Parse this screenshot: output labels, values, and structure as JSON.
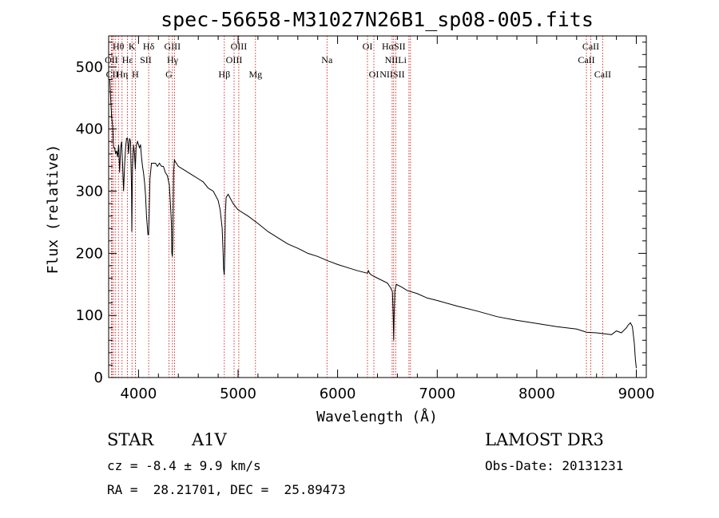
{
  "chart_data": {
    "type": "line",
    "title": "spec-56658-M31027N26B1_sp08-005.fits",
    "xlabel": "Wavelength (Å)",
    "ylabel": "Flux (relative)",
    "xlim": [
      3700,
      9100
    ],
    "ylim": [
      0,
      550
    ],
    "xticks": [
      4000,
      5000,
      6000,
      7000,
      8000,
      9000
    ],
    "yticks": [
      0,
      100,
      200,
      300,
      400,
      500
    ],
    "grid": false,
    "line_color": "#000000",
    "marker_color": "#cc0000",
    "series": [
      {
        "x": [
          3712,
          3720,
          3730,
          3740,
          3750,
          3760,
          3770,
          3780,
          3790,
          3800,
          3810,
          3820,
          3830,
          3835,
          3840,
          3850,
          3860,
          3870,
          3880,
          3889,
          3895,
          3900,
          3910,
          3920,
          3930,
          3933,
          3940,
          3950,
          3960,
          3968,
          3975,
          3980,
          3990,
          4000,
          4010,
          4020,
          4030,
          4040,
          4050,
          4060,
          4070,
          4080,
          4090,
          4095,
          4101,
          4107,
          4115,
          4130,
          4150,
          4170,
          4190,
          4210,
          4230,
          4250,
          4270,
          4290,
          4310,
          4320,
          4330,
          4335,
          4340,
          4345,
          4352,
          4360,
          4380,
          4400,
          4450,
          4500,
          4550,
          4600,
          4650,
          4700,
          4750,
          4800,
          4820,
          4840,
          4850,
          4855,
          4861,
          4867,
          4872,
          4880,
          4900,
          4950,
          5000,
          5100,
          5200,
          5300,
          5400,
          5500,
          5600,
          5700,
          5800,
          5900,
          6000,
          6100,
          6200,
          6300,
          6310,
          6320,
          6340,
          6400,
          6500,
          6530,
          6550,
          6558,
          6563,
          6568,
          6575,
          6590,
          6650,
          6700,
          6800,
          6900,
          7000,
          7200,
          7400,
          7600,
          7800,
          8000,
          8200,
          8400,
          8500,
          8600,
          8700,
          8750,
          8800,
          8850,
          8900,
          8920,
          8940,
          8960,
          8980,
          8990,
          9000
        ],
        "values": [
          480,
          450,
          420,
          405,
          370,
          370,
          360,
          365,
          355,
          375,
          330,
          370,
          380,
          360,
          345,
          300,
          340,
          370,
          385,
          385,
          375,
          360,
          385,
          380,
          300,
          235,
          340,
          375,
          360,
          335,
          370,
          375,
          380,
          375,
          370,
          375,
          355,
          340,
          330,
          315,
          295,
          260,
          240,
          230,
          230,
          260,
          320,
          345,
          345,
          345,
          340,
          345,
          340,
          340,
          330,
          325,
          310,
          280,
          250,
          200,
          195,
          220,
          330,
          350,
          345,
          340,
          335,
          330,
          325,
          320,
          315,
          305,
          300,
          285,
          270,
          240,
          200,
          175,
          165,
          200,
          265,
          290,
          295,
          280,
          270,
          260,
          248,
          235,
          225,
          215,
          208,
          200,
          195,
          188,
          182,
          177,
          172,
          168,
          172,
          168,
          165,
          160,
          152,
          145,
          138,
          100,
          60,
          100,
          140,
          150,
          145,
          140,
          135,
          128,
          124,
          115,
          107,
          98,
          92,
          87,
          82,
          78,
          73,
          72,
          70,
          69,
          75,
          72,
          80,
          85,
          88,
          82,
          55,
          30,
          15
        ]
      }
    ],
    "line_markers": [
      {
        "label": "Hθ",
        "x": 3798,
        "row": 1
      },
      {
        "label": "OII",
        "x": 3727,
        "row": 2
      },
      {
        "label": "CII",
        "x": 3737,
        "row": 3
      },
      {
        "label": "K",
        "x": 3934,
        "row": 1
      },
      {
        "label": "Hε",
        "x": 3889,
        "row": 2
      },
      {
        "label": "Hη",
        "x": 3835,
        "row": 3
      },
      {
        "label": "Hδ",
        "x": 4102,
        "row": 1
      },
      {
        "label": "SII",
        "x": 4072,
        "row": 2
      },
      {
        "label": "H",
        "x": 3968,
        "row": 3
      },
      {
        "label": "GIII",
        "x": 4340,
        "row": 1
      },
      {
        "label": "Hγ",
        "x": 4342,
        "row": 2
      },
      {
        "label": "G",
        "x": 4305,
        "row": 3
      },
      {
        "label": "OIII",
        "x": 5007,
        "row": 1
      },
      {
        "label": "OIII",
        "x": 4960,
        "row": 2
      },
      {
        "label": "Hβ",
        "x": 4862,
        "row": 3
      },
      {
        "label": "Mg",
        "x": 5175,
        "row": 3
      },
      {
        "label": "Na",
        "x": 5893,
        "row": 2
      },
      {
        "label": "OI",
        "x": 6300,
        "row": 1
      },
      {
        "label": "OI",
        "x": 6364,
        "row": 3
      },
      {
        "label": "HαSII",
        "x": 6563,
        "row": 1
      },
      {
        "label": "NIILi",
        "x": 6583,
        "row": 2
      },
      {
        "label": "NIISII",
        "x": 6548,
        "row": 3
      },
      {
        "label": "CaII",
        "x": 8542,
        "row": 1
      },
      {
        "label": "CaII",
        "x": 8498,
        "row": 2
      },
      {
        "label": "CaII",
        "x": 8662,
        "row": 3
      }
    ],
    "marker_lines_x": [
      3727,
      3737,
      3750,
      3771,
      3798,
      3835,
      3889,
      3934,
      3968,
      4102,
      4305,
      4340,
      4363,
      4862,
      4960,
      5007,
      5175,
      5893,
      6300,
      6364,
      6548,
      6563,
      6583,
      6716,
      6731,
      8498,
      8542,
      8662
    ]
  },
  "info": {
    "object_class": "STAR",
    "subclass": "A1V",
    "survey": "LAMOST DR3",
    "redshift": "cz = -8.4 ± 9.9 km/s",
    "obs_date": "Obs-Date: 20131231",
    "coords": "RA =  28.21701, DEC =  25.89473"
  }
}
